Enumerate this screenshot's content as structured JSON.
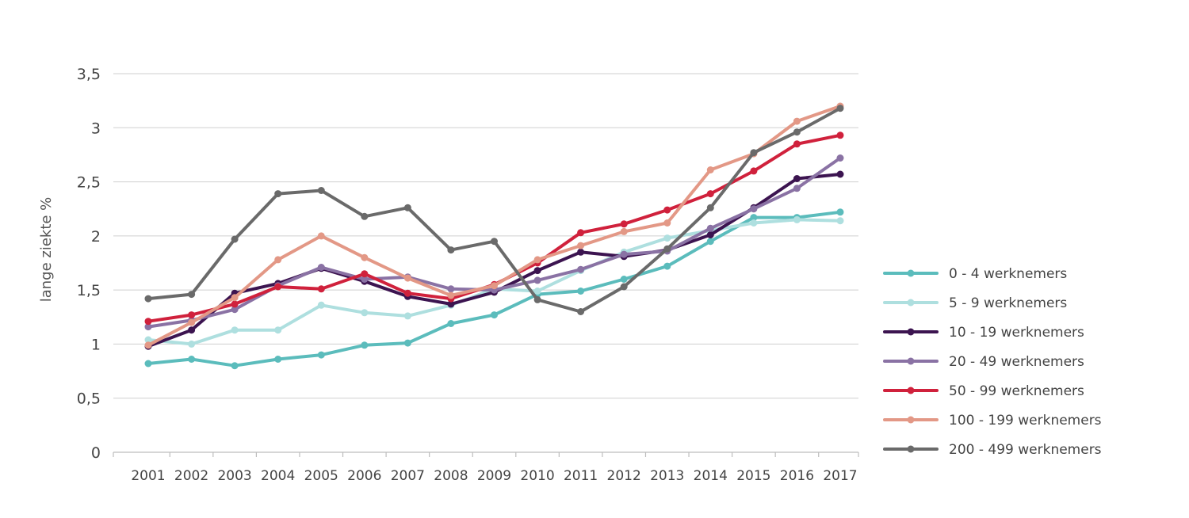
{
  "chart_data": {
    "type": "line",
    "title": "",
    "xlabel": "",
    "ylabel": "lange ziekte %",
    "ylim": [
      0,
      3.5
    ],
    "y_ticks": [
      "0",
      "0,5",
      "1",
      "1,5",
      "2",
      "2,5",
      "3",
      "3,5"
    ],
    "grid": true,
    "legend_position": "right",
    "categories": [
      "2001",
      "2002",
      "2003",
      "2004",
      "2005",
      "2006",
      "2007",
      "2008",
      "2009",
      "2010",
      "2011",
      "2012",
      "2013",
      "2014",
      "2015",
      "2016",
      "2017"
    ],
    "series": [
      {
        "name": "0 - 4 werknemers",
        "color": "#5bbcbc",
        "values": [
          0.82,
          0.86,
          0.8,
          0.86,
          0.9,
          0.99,
          1.01,
          1.19,
          1.27,
          1.46,
          1.49,
          1.6,
          1.72,
          1.95,
          2.17,
          2.17,
          2.22
        ]
      },
      {
        "name": "5 - 9 werknemers",
        "color": "#aedfdf",
        "values": [
          1.04,
          1.0,
          1.13,
          1.13,
          1.36,
          1.29,
          1.26,
          1.36,
          1.51,
          1.49,
          1.68,
          1.85,
          1.98,
          2.05,
          2.12,
          2.15,
          2.14
        ]
      },
      {
        "name": "10 - 19 werknemers",
        "color": "#3c1450",
        "values": [
          0.98,
          1.13,
          1.47,
          1.56,
          1.7,
          1.58,
          1.44,
          1.37,
          1.48,
          1.68,
          1.85,
          1.81,
          1.87,
          2.01,
          2.26,
          2.53,
          2.57
        ]
      },
      {
        "name": "20 - 49 werknemers",
        "color": "#8a72a4",
        "values": [
          1.16,
          1.22,
          1.32,
          1.54,
          1.71,
          1.6,
          1.62,
          1.51,
          1.5,
          1.59,
          1.69,
          1.83,
          1.86,
          2.07,
          2.25,
          2.44,
          2.72
        ]
      },
      {
        "name": "50 - 99 werknemers",
        "color": "#d0213c",
        "values": [
          1.21,
          1.27,
          1.37,
          1.53,
          1.51,
          1.65,
          1.47,
          1.42,
          1.55,
          1.75,
          2.03,
          2.11,
          2.24,
          2.39,
          2.6,
          2.85,
          2.93
        ]
      },
      {
        "name": "100 - 199 werknemers",
        "color": "#e39886",
        "values": [
          0.99,
          1.2,
          1.43,
          1.78,
          2.0,
          1.8,
          1.61,
          1.45,
          1.54,
          1.78,
          1.91,
          2.04,
          2.12,
          2.61,
          2.76,
          3.06,
          3.2
        ]
      },
      {
        "name": "200 - 499 werknemers",
        "color": "#6a6a6a",
        "values": [
          1.42,
          1.46,
          1.97,
          2.39,
          2.42,
          2.18,
          2.26,
          1.87,
          1.95,
          1.41,
          1.3,
          1.53,
          1.88,
          2.26,
          2.77,
          2.96,
          3.18
        ]
      }
    ]
  }
}
